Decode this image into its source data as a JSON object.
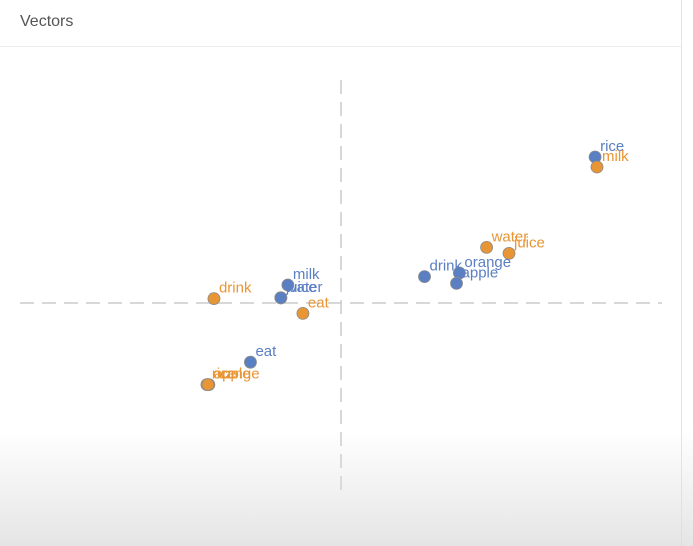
{
  "panel": {
    "title": "Vectors"
  },
  "chart_data": {
    "type": "scatter",
    "title": "Vectors",
    "xlabel": "",
    "ylabel": "",
    "xlim": [
      -1,
      1
    ],
    "ylim": [
      -0.55,
      0.55
    ],
    "grid": false,
    "series": [
      {
        "color": "#5b7fc3",
        "points": [
          {
            "label": "rice",
            "x": 0.794,
            "y": 0.365
          },
          {
            "label": "drink",
            "x": 0.261,
            "y": 0.066
          },
          {
            "label": "orange",
            "x": 0.37,
            "y": 0.075
          },
          {
            "label": "apple",
            "x": 0.361,
            "y": 0.049
          },
          {
            "label": "milk",
            "x": -0.166,
            "y": 0.045
          },
          {
            "label": "water",
            "x": -0.188,
            "y": 0.013
          },
          {
            "label": "juice",
            "x": -0.188,
            "y": 0.013
          },
          {
            "label": "eat",
            "x": -0.283,
            "y": -0.148
          }
        ]
      },
      {
        "color": "#e89535",
        "points": [
          {
            "label": "milk",
            "x": 0.8,
            "y": 0.34
          },
          {
            "label": "water",
            "x": 0.455,
            "y": 0.139
          },
          {
            "label": "juice",
            "x": 0.525,
            "y": 0.124
          },
          {
            "label": "drink",
            "x": -0.397,
            "y": 0.011
          },
          {
            "label": "eat",
            "x": -0.119,
            "y": -0.026
          },
          {
            "label": "rice",
            "x": -0.419,
            "y": -0.204
          },
          {
            "label": "apple",
            "x": -0.413,
            "y": -0.204
          },
          {
            "label": "orange",
            "x": -0.416,
            "y": -0.204
          }
        ]
      }
    ]
  }
}
